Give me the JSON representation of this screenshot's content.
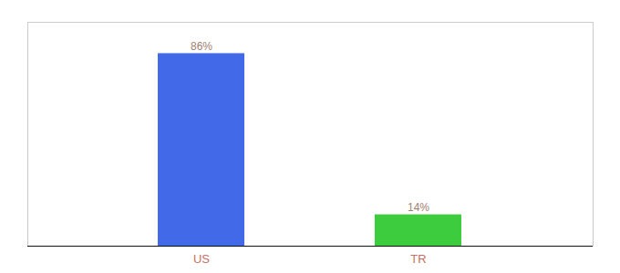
{
  "chart_data": {
    "type": "bar",
    "categories": [
      "US",
      "TR"
    ],
    "values": [
      86,
      14
    ],
    "value_labels": [
      "86%",
      "14%"
    ],
    "colors": [
      "#4169e8",
      "#3dcc3d"
    ],
    "ylim": [
      0,
      100
    ],
    "data_labels": true,
    "tick_labels": "x"
  }
}
